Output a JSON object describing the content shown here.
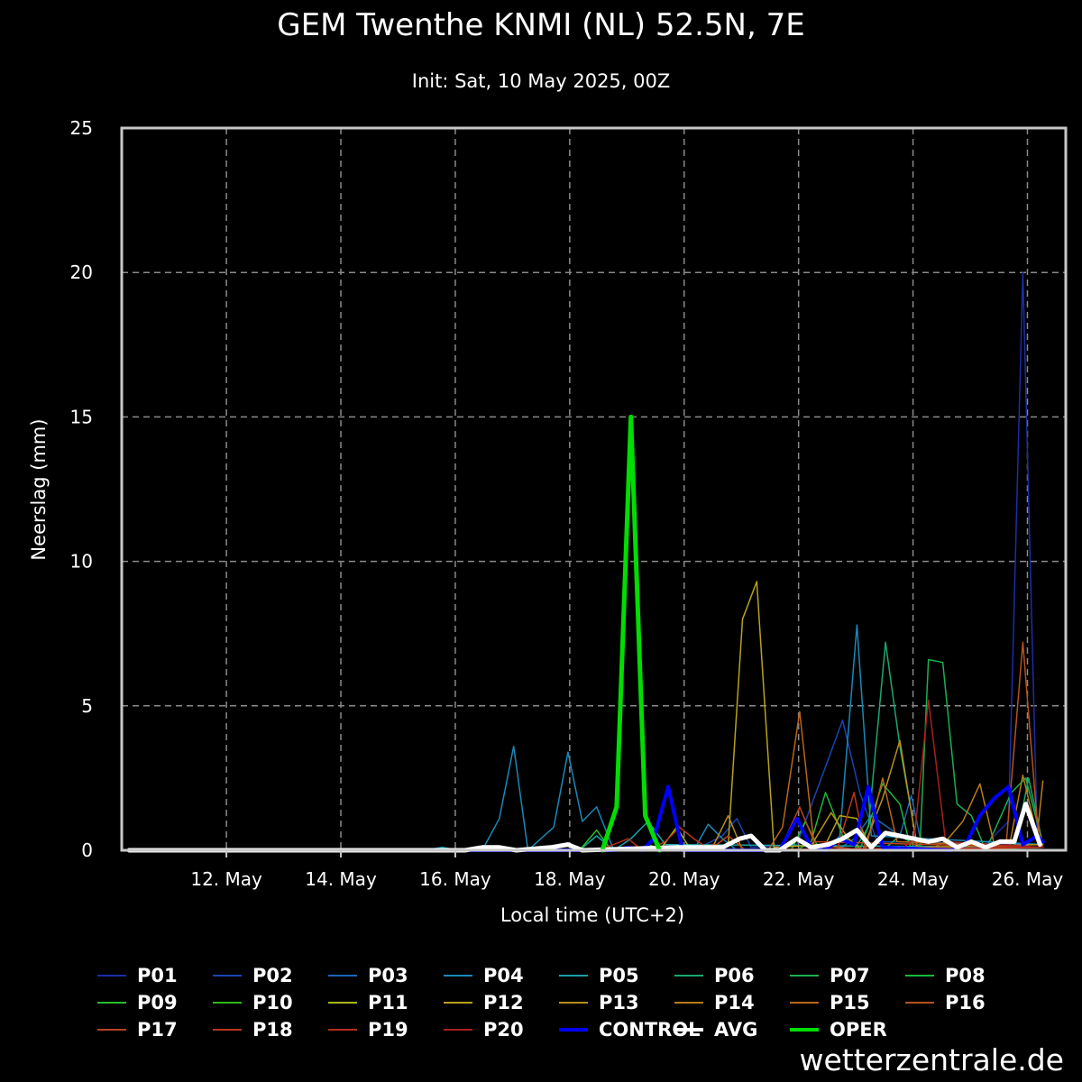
{
  "header": {
    "title": "GEM Twenthe KNMI (NL) 52.5N, 7E",
    "subtitle": "Init: Sat, 10 May 2025, 00Z"
  },
  "branding": "wetterzentrale.de",
  "chart_data": {
    "type": "line",
    "title": "GEM Twenthe KNMI (NL) 52.5N, 7E",
    "subtitle": "Init: Sat, 10 May 2025, 00Z",
    "xlabel": "Local time (UTC+2)",
    "ylabel": "Neerslag (mm)",
    "x_unit": "days since 10 May 2025 02:00 local",
    "xlim": [
      0,
      16.5
    ],
    "ylim": [
      0,
      25
    ],
    "yticks": [
      0,
      5,
      10,
      15,
      20,
      25
    ],
    "xticks": [
      {
        "x": 1.83,
        "label": "12. May"
      },
      {
        "x": 3.83,
        "label": "14. May"
      },
      {
        "x": 5.83,
        "label": "16. May"
      },
      {
        "x": 7.83,
        "label": "18. May"
      },
      {
        "x": 9.83,
        "label": "20. May"
      },
      {
        "x": 11.83,
        "label": "22. May"
      },
      {
        "x": 13.83,
        "label": "24. May"
      },
      {
        "x": 15.83,
        "label": "26. May"
      }
    ],
    "grid": true,
    "legend_position": "bottom",
    "series": [
      {
        "name": "P01",
        "color": "#1a2ea8",
        "width": 1.5,
        "points": [
          [
            0.13,
            0
          ],
          [
            15.0,
            0
          ],
          [
            15.5,
            1
          ],
          [
            15.75,
            20
          ],
          [
            16.0,
            0.5
          ],
          [
            16.1,
            0.2
          ]
        ]
      },
      {
        "name": "P02",
        "color": "#1a44b4",
        "width": 1.5,
        "points": [
          [
            0.13,
            0
          ],
          [
            10.0,
            0
          ],
          [
            10.5,
            0.5
          ],
          [
            10.75,
            1.1
          ],
          [
            11.0,
            0.1
          ],
          [
            11.8,
            0.2
          ],
          [
            12.6,
            4.5
          ],
          [
            12.9,
            2
          ],
          [
            13.2,
            0.3
          ],
          [
            16.1,
            0.2
          ]
        ]
      },
      {
        "name": "P03",
        "color": "#1a66b8",
        "width": 1.5,
        "points": [
          [
            0.13,
            0
          ],
          [
            12.5,
            0
          ],
          [
            12.8,
            0.4
          ],
          [
            13.1,
            1.2
          ],
          [
            13.6,
            0.5
          ],
          [
            13.8,
            1.9
          ],
          [
            14.0,
            0
          ],
          [
            16.1,
            0.1
          ]
        ]
      },
      {
        "name": "P04",
        "color": "#1a88b8",
        "width": 1.5,
        "points": [
          [
            0.13,
            0
          ],
          [
            6.3,
            0
          ],
          [
            6.6,
            1.1
          ],
          [
            6.85,
            3.6
          ],
          [
            7.1,
            0
          ],
          [
            7.55,
            0.8
          ],
          [
            7.8,
            3.4
          ],
          [
            8.05,
            1
          ],
          [
            8.3,
            1.5
          ],
          [
            8.6,
            0
          ],
          [
            10.0,
            0
          ],
          [
            10.25,
            0.9
          ],
          [
            10.5,
            0.4
          ],
          [
            10.75,
            0
          ],
          [
            12.3,
            0
          ],
          [
            12.55,
            0.5
          ],
          [
            12.85,
            7.8
          ],
          [
            13.1,
            0.5
          ],
          [
            16.1,
            0.2
          ]
        ]
      },
      {
        "name": "P05",
        "color": "#1aa0a8",
        "width": 1.5,
        "points": [
          [
            0.13,
            0
          ],
          [
            5.3,
            0
          ],
          [
            5.6,
            0.1
          ],
          [
            5.9,
            0
          ],
          [
            8.0,
            0
          ],
          [
            8.3,
            0.5
          ],
          [
            8.6,
            0
          ],
          [
            8.9,
            0.4
          ],
          [
            9.2,
            1
          ],
          [
            9.5,
            0.2
          ],
          [
            16.1,
            0.1
          ]
        ]
      },
      {
        "name": "P06",
        "color": "#1aa870",
        "width": 1.5,
        "points": [
          [
            0.13,
            0
          ],
          [
            12.8,
            0
          ],
          [
            13.05,
            0.8
          ],
          [
            13.35,
            7.2
          ],
          [
            13.6,
            3.6
          ],
          [
            13.9,
            0.2
          ],
          [
            14.1,
            0
          ],
          [
            15.6,
            0
          ],
          [
            15.85,
            2.5
          ],
          [
            16.1,
            0.2
          ]
        ]
      },
      {
        "name": "P07",
        "color": "#1ab050",
        "width": 1.5,
        "points": [
          [
            0.13,
            0
          ],
          [
            13.3,
            0
          ],
          [
            13.6,
            0.5
          ],
          [
            13.95,
            0.1
          ],
          [
            14.1,
            6.6
          ],
          [
            14.35,
            6.5
          ],
          [
            14.6,
            1.6
          ],
          [
            14.85,
            1.2
          ],
          [
            15.1,
            0
          ],
          [
            15.55,
            2
          ],
          [
            15.8,
            2.5
          ],
          [
            16.1,
            0.2
          ]
        ]
      },
      {
        "name": "P08",
        "color": "#1ab83a",
        "width": 1.5,
        "points": [
          [
            0.13,
            0
          ],
          [
            11.8,
            0
          ],
          [
            12.05,
            0.3
          ],
          [
            12.3,
            2
          ],
          [
            12.6,
            0.5
          ],
          [
            12.9,
            0
          ],
          [
            13.3,
            2.3
          ],
          [
            13.6,
            1.6
          ],
          [
            13.8,
            0
          ],
          [
            16.1,
            0.1
          ]
        ]
      },
      {
        "name": "P09",
        "color": "#22c02a",
        "width": 1.5,
        "points": [
          [
            0.13,
            0
          ],
          [
            8.0,
            0
          ],
          [
            8.3,
            0.7
          ],
          [
            8.55,
            0
          ],
          [
            11.7,
            0
          ],
          [
            11.95,
            1
          ],
          [
            12.2,
            0
          ],
          [
            16.1,
            0.1
          ]
        ]
      },
      {
        "name": "P10",
        "color": "#2eb81a",
        "width": 1.5,
        "points": [
          [
            0.13,
            0
          ],
          [
            9.0,
            0
          ],
          [
            9.2,
            0.2
          ],
          [
            9.5,
            0
          ],
          [
            16.1,
            0
          ]
        ]
      },
      {
        "name": "P11",
        "color": "#a8b81a",
        "width": 1.5,
        "points": [
          [
            0.13,
            0
          ],
          [
            6.3,
            0
          ],
          [
            6.6,
            0.1
          ],
          [
            6.9,
            0
          ],
          [
            7.4,
            0
          ],
          [
            7.7,
            0.2
          ],
          [
            8.0,
            0
          ],
          [
            9.4,
            0
          ],
          [
            9.7,
            0.8
          ],
          [
            9.95,
            0
          ],
          [
            16.1,
            0.1
          ]
        ]
      },
      {
        "name": "P12",
        "color": "#b8a21a",
        "width": 1.5,
        "points": [
          [
            0.13,
            0
          ],
          [
            10.3,
            0
          ],
          [
            10.6,
            0.2
          ],
          [
            10.85,
            8
          ],
          [
            11.1,
            9.3
          ],
          [
            11.4,
            0.1
          ],
          [
            12.3,
            0.2
          ],
          [
            12.55,
            1.2
          ],
          [
            12.85,
            1.1
          ],
          [
            13.1,
            0
          ],
          [
            16.1,
            0.1
          ]
        ]
      },
      {
        "name": "P13",
        "color": "#b8901a",
        "width": 1.5,
        "points": [
          [
            0.13,
            0
          ],
          [
            10.1,
            0
          ],
          [
            10.35,
            0.2
          ],
          [
            10.6,
            1.2
          ],
          [
            10.85,
            0
          ],
          [
            12.0,
            0
          ],
          [
            12.4,
            1.3
          ],
          [
            12.7,
            0.4
          ],
          [
            12.95,
            0
          ],
          [
            13.3,
            1.8
          ],
          [
            13.6,
            3.8
          ],
          [
            13.9,
            0.1
          ],
          [
            16.1,
            0.2
          ]
        ]
      },
      {
        "name": "P14",
        "color": "#b87c1a",
        "width": 1.5,
        "points": [
          [
            0.13,
            0
          ],
          [
            14.1,
            0
          ],
          [
            14.4,
            0.3
          ],
          [
            14.7,
            1
          ],
          [
            15.0,
            2.3
          ],
          [
            15.25,
            0.2
          ],
          [
            15.5,
            0
          ],
          [
            15.75,
            2.6
          ],
          [
            16.0,
            0.5
          ],
          [
            16.1,
            2.4
          ]
        ]
      },
      {
        "name": "P15",
        "color": "#b8661a",
        "width": 1.5,
        "points": [
          [
            0.13,
            0
          ],
          [
            11.3,
            0
          ],
          [
            11.55,
            0.8
          ],
          [
            11.85,
            4.8
          ],
          [
            12.1,
            0.2
          ],
          [
            13.0,
            0
          ],
          [
            13.3,
            2.5
          ],
          [
            13.55,
            0.3
          ],
          [
            16.1,
            0.1
          ]
        ]
      },
      {
        "name": "P16",
        "color": "#b8521a",
        "width": 1.5,
        "points": [
          [
            0.13,
            0
          ],
          [
            15.45,
            0
          ],
          [
            15.75,
            7.2
          ],
          [
            16.0,
            1
          ],
          [
            16.1,
            0.1
          ]
        ]
      },
      {
        "name": "P17",
        "color": "#b8441a",
        "width": 1.5,
        "points": [
          [
            0.13,
            0
          ],
          [
            9.8,
            0
          ],
          [
            10.1,
            0.1
          ],
          [
            10.4,
            0.2
          ],
          [
            10.6,
            0.5
          ],
          [
            10.9,
            0
          ],
          [
            11.5,
            0
          ],
          [
            11.85,
            1.5
          ],
          [
            12.1,
            0.3
          ],
          [
            16.1,
            0.1
          ]
        ]
      },
      {
        "name": "P18",
        "color": "#b8381a",
        "width": 1.5,
        "points": [
          [
            0.13,
            0
          ],
          [
            9.2,
            0
          ],
          [
            9.5,
            0.3
          ],
          [
            9.75,
            0.8
          ],
          [
            10.0,
            0.4
          ],
          [
            10.3,
            0
          ],
          [
            12.5,
            0
          ],
          [
            12.8,
            2
          ],
          [
            13.0,
            0
          ],
          [
            16.1,
            0.1
          ]
        ]
      },
      {
        "name": "P19",
        "color": "#b82a1a",
        "width": 1.5,
        "points": [
          [
            0.13,
            0
          ],
          [
            8.3,
            0
          ],
          [
            8.6,
            0.2
          ],
          [
            8.85,
            0.4
          ],
          [
            9.1,
            0
          ],
          [
            16.1,
            0.1
          ]
        ]
      },
      {
        "name": "P20",
        "color": "#a8201a",
        "width": 1.5,
        "points": [
          [
            0.13,
            0
          ],
          [
            13.6,
            0
          ],
          [
            13.85,
            0.4
          ],
          [
            14.1,
            5.2
          ],
          [
            14.4,
            0.3
          ],
          [
            16.1,
            0.1
          ]
        ]
      },
      {
        "name": "CONTROL",
        "color": "#0000ff",
        "width": 4,
        "points": [
          [
            0.13,
            0
          ],
          [
            8.6,
            0
          ],
          [
            8.85,
            0.1
          ],
          [
            9.1,
            0
          ],
          [
            9.3,
            0.4
          ],
          [
            9.55,
            2.2
          ],
          [
            9.8,
            0
          ],
          [
            11.5,
            0
          ],
          [
            11.8,
            1.1
          ],
          [
            12.05,
            0.1
          ],
          [
            12.3,
            0
          ],
          [
            12.55,
            0.4
          ],
          [
            12.8,
            0.2
          ],
          [
            13.05,
            2.2
          ],
          [
            13.3,
            0.1
          ],
          [
            14.5,
            0
          ],
          [
            14.75,
            0.2
          ],
          [
            15.0,
            1.2
          ],
          [
            15.25,
            1.8
          ],
          [
            15.5,
            2.2
          ],
          [
            15.75,
            0.2
          ],
          [
            16.0,
            0.5
          ],
          [
            16.1,
            0.3
          ]
        ]
      },
      {
        "name": "AVG",
        "color": "#ffffff",
        "width": 5,
        "points": [
          [
            0.13,
            0
          ],
          [
            6.0,
            0
          ],
          [
            6.3,
            0.1
          ],
          [
            6.6,
            0.1
          ],
          [
            6.9,
            0
          ],
          [
            7.5,
            0.1
          ],
          [
            7.8,
            0.2
          ],
          [
            8.05,
            0
          ],
          [
            9.7,
            0.1
          ],
          [
            10.0,
            0.1
          ],
          [
            10.5,
            0.1
          ],
          [
            10.8,
            0.4
          ],
          [
            11.0,
            0.5
          ],
          [
            11.25,
            0
          ],
          [
            11.5,
            0
          ],
          [
            11.8,
            0.4
          ],
          [
            12.05,
            0.1
          ],
          [
            12.35,
            0.2
          ],
          [
            12.6,
            0.4
          ],
          [
            12.85,
            0.7
          ],
          [
            13.1,
            0.1
          ],
          [
            13.35,
            0.6
          ],
          [
            13.6,
            0.5
          ],
          [
            13.85,
            0.4
          ],
          [
            14.1,
            0.3
          ],
          [
            14.35,
            0.4
          ],
          [
            14.6,
            0.1
          ],
          [
            14.85,
            0.3
          ],
          [
            15.1,
            0.1
          ],
          [
            15.35,
            0.3
          ],
          [
            15.6,
            0.3
          ],
          [
            15.8,
            1.6
          ],
          [
            16.05,
            0.2
          ]
        ]
      },
      {
        "name": "OPER",
        "color": "#00dd00",
        "width": 5,
        "points": [
          [
            8.4,
            0
          ],
          [
            8.65,
            1.5
          ],
          [
            8.9,
            15
          ],
          [
            9.15,
            1.2
          ],
          [
            9.4,
            0
          ]
        ]
      }
    ]
  }
}
